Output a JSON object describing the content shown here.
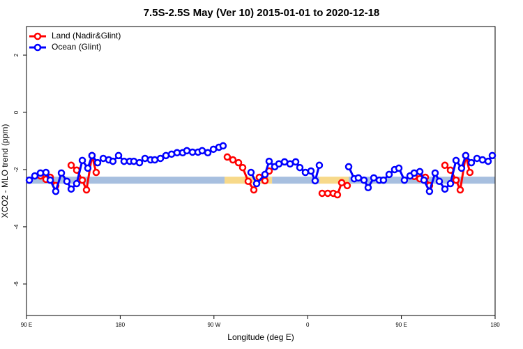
{
  "chart_data": {
    "type": "line",
    "title": "7.5S-2.5S May (Ver 10)   2015-01-01 to 2020-12-18",
    "x_label": "Longitude (deg E)",
    "y_label": "XCO2 - MLO trend (ppm)",
    "xlim": [
      90,
      540
    ],
    "xticks": [
      {
        "value": 90,
        "label": "90 E"
      },
      180,
      {
        "value": 270,
        "label": "90 W"
      },
      {
        "value": 360,
        "label": "0"
      },
      {
        "value": 450,
        "label": "90 E"
      },
      {
        "value": 540,
        "label": "180"
      }
    ],
    "ylim": [
      -7.1,
      3
    ],
    "yticks": [
      2,
      0,
      -2,
      -4,
      -6
    ],
    "legend": "top-left",
    "band": {
      "value": -2.37,
      "segments": [
        {
          "x0": 90,
          "x1": 280.2,
          "color": "#a7bfdf"
        },
        {
          "x0": 280.2,
          "x1": 325.8,
          "color": "#f7d98a"
        },
        {
          "x0": 325.8,
          "x1": 371.3,
          "color": "#a7bfdf"
        },
        {
          "x0": 371.3,
          "x1": 399.4,
          "color": "#f7d98a"
        },
        {
          "x0": 399.4,
          "x1": 540,
          "color": "#a7bfdf"
        }
      ]
    },
    "series": [
      {
        "name": "Land (Nadir&Glint)",
        "color": "#ff0000",
        "x": [
          103.4,
          108.7,
          112.8,
          118.1,
          null,
          132.9,
          138.2,
          143.6,
          147.6,
          152.9,
          156.9,
          null,
          282.8,
          288.2,
          293.6,
          297.6,
          302.9,
          308.3,
          313.6,
          319.0,
          323.0,
          null,
          373.9,
          379.3,
          384.6,
          388.6,
          392.7,
          398.0,
          null,
          462.3,
          467.7,
          473.0,
          477.0,
          null,
          491.8,
          497.1,
          502.5,
          506.5,
          511.8,
          515.8
        ],
        "values": [
          -2.22,
          -2.34,
          -2.27,
          -2.56,
          null,
          -1.85,
          -2.02,
          -2.37,
          -2.71,
          -1.51,
          -2.1,
          null,
          -1.56,
          -1.66,
          -1.76,
          -1.93,
          -2.41,
          -2.71,
          -2.27,
          -2.39,
          -2.05,
          null,
          -2.83,
          -2.83,
          -2.83,
          -2.88,
          -2.46,
          -2.56,
          null,
          -2.24,
          -2.32,
          -2.27,
          -2.56,
          null,
          -1.85,
          -2.02,
          -2.37,
          -2.71,
          -1.51,
          -2.1
        ]
      },
      {
        "name": "Ocean (Glint)",
        "color": "#0000ff",
        "x": [
          92.7,
          98.0,
          103.4,
          108.7,
          112.8,
          118.1,
          123.5,
          128.8,
          132.9,
          138.2,
          143.6,
          148.9,
          152.9,
          158.3,
          163.7,
          169.0,
          173.0,
          178.4,
          183.7,
          189.1,
          193.1,
          198.5,
          203.8,
          209.2,
          213.2,
          218.6,
          223.9,
          229.3,
          234.6,
          240.0,
          244.0,
          249.4,
          254.7,
          258.7,
          264.1,
          269.5,
          274.8,
          278.8,
          null,
          305.6,
          311.0,
          319.0,
          323.0,
          328.4,
          332.4,
          337.8,
          343.1,
          348.5,
          352.5,
          357.8,
          363.2,
          367.2,
          371.2,
          null,
          399.4,
          404.7,
          408.7,
          414.1,
          418.1,
          423.5,
          428.8,
          432.8,
          438.2,
          443.5,
          447.6,
          452.9,
          458.3,
          462.3,
          467.7,
          471.7,
          477.0,
          482.4,
          486.4,
          491.8,
          497.1,
          502.5,
          507.8,
          511.8,
          517.2,
          522.6,
          527.9,
          533.3,
          537.3
        ],
        "values": [
          -2.37,
          -2.22,
          -2.12,
          -2.1,
          -2.37,
          -2.76,
          -2.12,
          -2.41,
          -2.68,
          -2.49,
          -1.68,
          -1.95,
          -1.51,
          -1.76,
          -1.61,
          -1.66,
          -1.71,
          -1.51,
          -1.71,
          -1.71,
          -1.71,
          -1.76,
          -1.61,
          -1.66,
          -1.66,
          -1.61,
          -1.51,
          -1.46,
          -1.41,
          -1.41,
          -1.34,
          -1.39,
          -1.39,
          -1.34,
          -1.41,
          -1.29,
          -1.22,
          -1.17,
          null,
          -2.1,
          -2.49,
          -2.17,
          -1.71,
          -1.9,
          -1.8,
          -1.73,
          -1.8,
          -1.73,
          -1.93,
          -2.1,
          -2.05,
          -2.39,
          -1.85,
          null,
          -1.9,
          -2.32,
          -2.29,
          -2.37,
          -2.63,
          -2.29,
          -2.37,
          -2.37,
          -2.17,
          -2.0,
          -1.95,
          -2.37,
          -2.22,
          -2.12,
          -2.07,
          -2.37,
          -2.76,
          -2.12,
          -2.41,
          -2.68,
          -2.49,
          -1.68,
          -1.95,
          -1.51,
          -1.76,
          -1.61,
          -1.66,
          -1.71,
          -1.51
        ]
      }
    ]
  }
}
